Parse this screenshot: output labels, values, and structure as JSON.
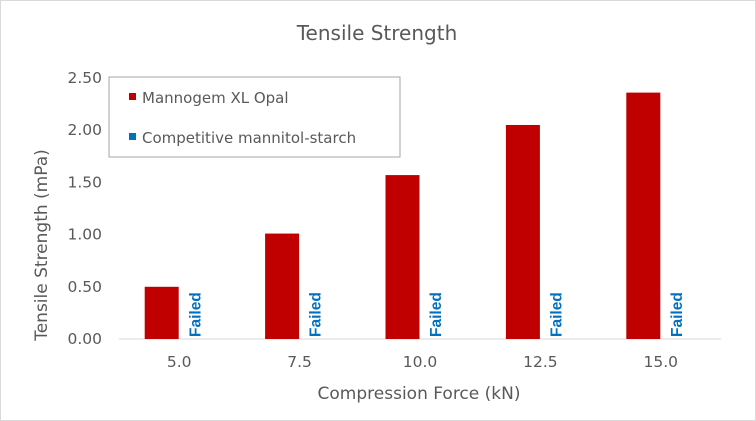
{
  "chart_data": {
    "type": "bar",
    "title": "Tensile Strength",
    "xlabel": "Compression Force (kN)",
    "ylabel": "Tensile Strength (mPa)",
    "categories": [
      "5.0",
      "7.5",
      "10.0",
      "12.5",
      "15.0"
    ],
    "ylim": [
      0,
      2.5
    ],
    "yticks": [
      "0.00",
      "0.50",
      "1.00",
      "1.50",
      "2.00",
      "2.50"
    ],
    "grid": false,
    "legend_position": "top-left",
    "series": [
      {
        "name": "Mannogem XL Opal",
        "color": "#c00000",
        "values": [
          0.5,
          1.01,
          1.57,
          2.05,
          2.36
        ]
      },
      {
        "name": "Competitive mannitol-starch",
        "color": "#0070c0",
        "values": [
          null,
          null,
          null,
          null,
          null
        ],
        "labels": [
          "Failed",
          "Failed",
          "Failed",
          "Failed",
          "Failed"
        ]
      }
    ]
  }
}
